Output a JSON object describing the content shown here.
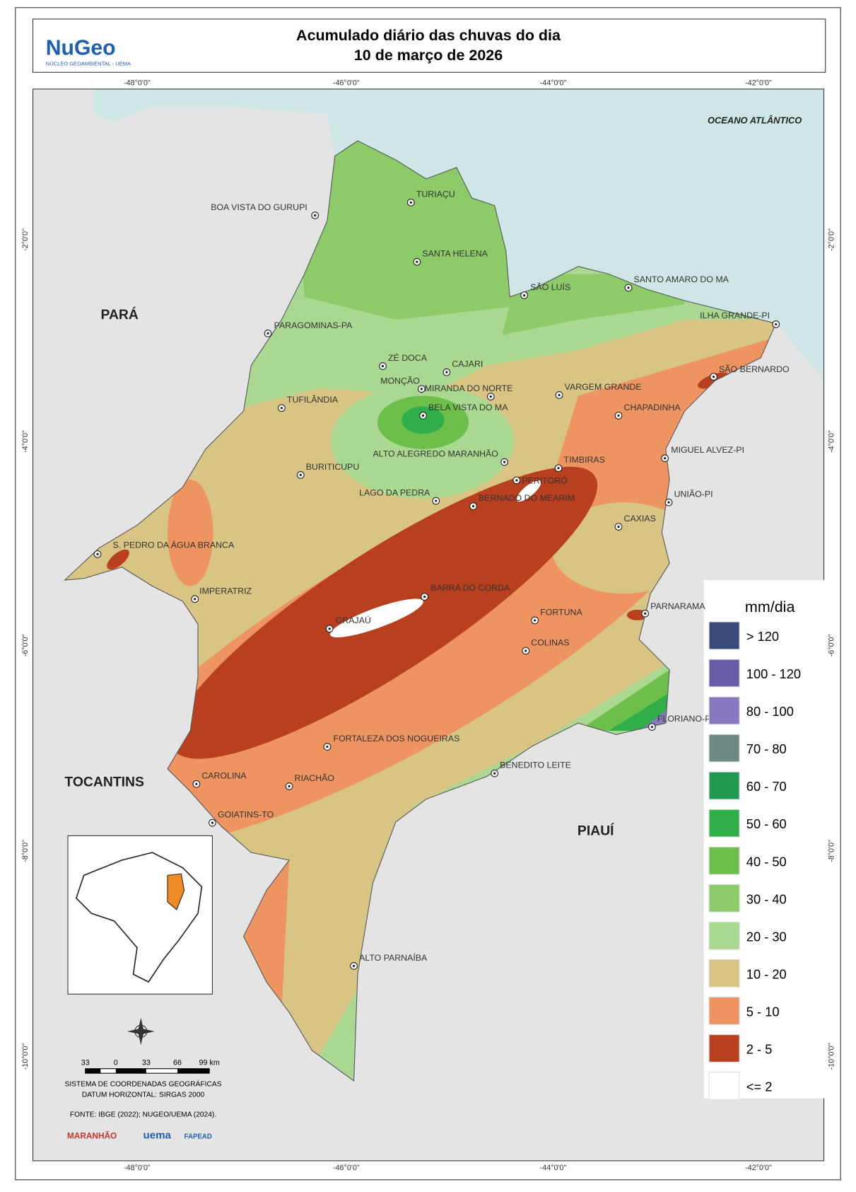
{
  "header": {
    "title_line1": "Acumulado diário das chuvas do dia",
    "title_line2": "10 de março de 2026",
    "logo": "NuGeo",
    "logo_subtitle": "NÚCLEO GEOAMBIENTAL - UEMA"
  },
  "graticule": {
    "longitudes": [
      "-48°0'0\"",
      "-46°0'0\"",
      "-44°0'0\"",
      "-42°0'0\""
    ],
    "latitudes": [
      "-2°0'0\"",
      "-4°0'0\"",
      "-6°0'0\"",
      "-8°0'0\"",
      "-10°0'0\""
    ]
  },
  "regions": [
    "PARÁ",
    "TOCANTINS",
    "PIAUÍ",
    "OCEANO ATLÂNTICO"
  ],
  "cities": [
    "TURIAÇU",
    "BOA VISTA DO GURUPI",
    "SANTA HELENA",
    "SÃO LUÍS",
    "SANTO AMARO DO MA",
    "PARAGOMINAS-PA",
    "ILHA GRANDE-PI",
    "ZÉ DOCA",
    "CAJARI",
    "SÃO BERNARDO",
    "MONÇÃO",
    "MIRANDA DO NORTE",
    "VARGEM GRANDE",
    "TUFILÂNDIA",
    "BELA VISTA DO MA",
    "CHAPADINHA",
    "MIGUEL ALVEZ-PI",
    "ALTO ALEGREDO MARANHÃO",
    "TIMBIRAS",
    "BURITICUPU",
    "PERITORÓ",
    "UNIÃO-PI",
    "LAGO DA PEDRA",
    "BERNADO DO MEARIM",
    "CAXIAS",
    "S. PEDRO DA ÁGUA BRANCA",
    "IMPERATRIZ",
    "BARRA DO CORDA",
    "PARNARAMA",
    "FORTUNA",
    "GRAJAÚ",
    "COLINAS",
    "FLORIANO-PI",
    "FORTALEZA DOS NOGUEIRAS",
    "BENEDITO LEITE",
    "CAROLINA",
    "RIACHÃO",
    "GOIATINS-TO",
    "ALTO PARNAÍBA"
  ],
  "legend": {
    "title": "mm/dia",
    "items": [
      {
        "label": "> 120",
        "color": "#3a4a7a"
      },
      {
        "label": "100 - 120",
        "color": "#6a5aaa"
      },
      {
        "label": "80 - 100",
        "color": "#8878c0"
      },
      {
        "label": "70 - 80",
        "color": "#6f8a84"
      },
      {
        "label": "60 - 70",
        "color": "#1f9a50"
      },
      {
        "label": "50 - 60",
        "color": "#2fae4a"
      },
      {
        "label": "40 - 50",
        "color": "#6cbf4a"
      },
      {
        "label": "30 - 40",
        "color": "#8ccb68"
      },
      {
        "label": "20 - 30",
        "color": "#abd890"
      },
      {
        "label": "10 - 20",
        "color": "#d8c584"
      },
      {
        "label": "5 - 10",
        "color": "#ee9460"
      },
      {
        "label": "2 - 5",
        "color": "#b8401f"
      },
      {
        "label": "<= 2",
        "color": "#ffffff"
      }
    ]
  },
  "scale_bar": [
    "33",
    "0",
    "33",
    "66",
    "99 km"
  ],
  "footer": {
    "crs_line1": "SISTEMA DE COORDENADAS GEOGRÁFICAS",
    "crs_line2": "DATUM HORIZONTAL: SIRGAS 2000",
    "source": "FONTE: IBGE (2022); NUGEO/UEMA (2024).",
    "logos": [
      "MARANHÃO",
      "uema",
      "FAPEAD"
    ]
  }
}
